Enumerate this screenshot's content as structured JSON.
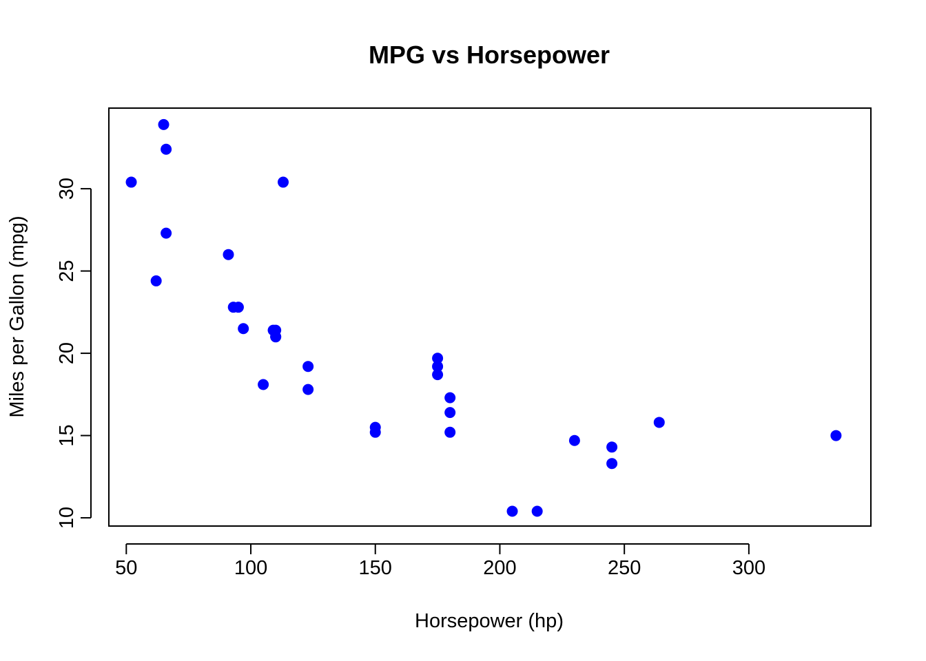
{
  "chart_data": {
    "type": "scatter",
    "title": "MPG vs Horsepower",
    "xlabel": "Horsepower (hp)",
    "ylabel": "Miles per Gallon (mpg)",
    "xlim": [
      43,
      349
    ],
    "ylim": [
      9.5,
      34.9
    ],
    "xticks": [
      50,
      100,
      150,
      200,
      250,
      300
    ],
    "yticks": [
      10,
      15,
      20,
      25,
      30
    ],
    "grid": false,
    "point_color": "#0000ff",
    "series": [
      {
        "x": [
          110,
          110,
          93,
          110,
          175,
          105,
          245,
          62,
          95,
          123,
          123,
          180,
          180,
          180,
          205,
          215,
          230,
          66,
          52,
          65,
          97,
          150,
          150,
          245,
          175,
          66,
          91,
          113,
          264,
          175,
          335,
          109
        ],
        "y": [
          21.0,
          21.0,
          22.8,
          21.4,
          18.7,
          18.1,
          14.3,
          24.4,
          22.8,
          19.2,
          17.8,
          16.4,
          17.3,
          15.2,
          10.4,
          10.4,
          14.7,
          32.4,
          30.4,
          33.9,
          21.5,
          15.5,
          15.2,
          13.3,
          19.2,
          27.3,
          26.0,
          30.4,
          15.8,
          19.7,
          15.0,
          21.4
        ]
      }
    ]
  }
}
